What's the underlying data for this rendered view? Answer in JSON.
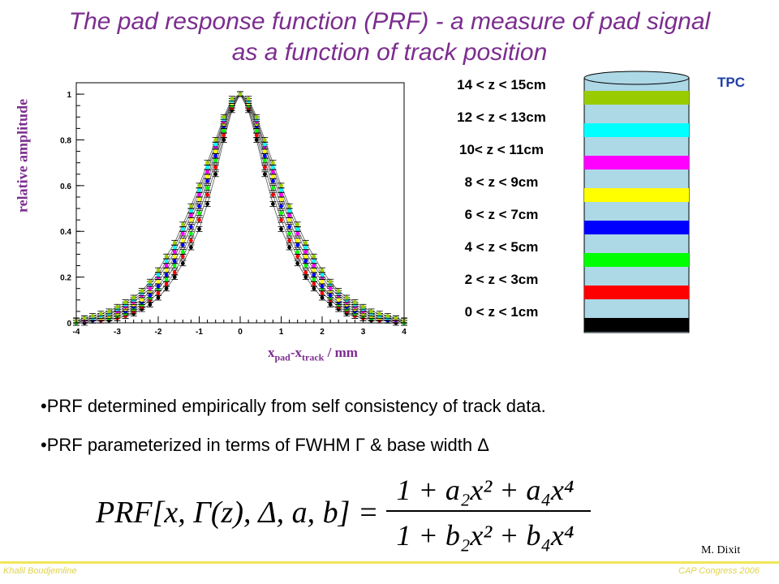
{
  "slide": {
    "title_line1": "The pad response function (PRF) - a measure of pad signal",
    "title_line2": "as a function of track position",
    "bullets": [
      "•PRF determined empirically from self consistency of track data.",
      "•PRF parameterized in terms of FWHM Γ & base width Δ"
    ],
    "formula": {
      "lhs": "PRF[x, Γ(z), Δ, a, b] =",
      "numerator": "1 + a₂x² + a₄x⁴",
      "denominator": "1 + b₂x² + b₄x⁴"
    },
    "credit": "M. Dixit",
    "footer_left": "Khalil Boudjemline",
    "footer_right": "CAP Congress 2006"
  },
  "colors": {
    "title": "#7b2d8e",
    "tpc_label": "#1f3fa8",
    "cylinder_body": "#add8e6",
    "footer": "#e0d24a"
  },
  "tpc": {
    "label": "TPC",
    "bands": [
      {
        "label": "14 < z < 15cm",
        "color": "#99cc00"
      },
      {
        "label": "12 < z < 13cm",
        "color": "#00ffff"
      },
      {
        "label": "10< z < 11cm",
        "color": "#ff00ff"
      },
      {
        "label": "8 < z < 9cm",
        "color": "#ffff00"
      },
      {
        "label": "6 < z < 7cm",
        "color": "#0000ff"
      },
      {
        "label": "4 < z < 5cm",
        "color": "#00ff00"
      },
      {
        "label": "2 < z < 3cm",
        "color": "#ff0000"
      },
      {
        "label": "0 < z < 1cm",
        "color": "#000000"
      }
    ]
  },
  "chart_data": {
    "type": "scatter",
    "ylabel": "relative amplitude",
    "xlabel_parts": [
      "x",
      "pad",
      "-x",
      "track",
      " / mm"
    ],
    "xlim": [
      -4,
      4
    ],
    "ylim": [
      0,
      1.05
    ],
    "xticks": [
      "-4",
      "-3",
      "-2",
      "-1",
      "0",
      "1",
      "2",
      "3",
      "4"
    ],
    "yticks": [
      "0",
      "0.2",
      "0.4",
      "0.6",
      "0.8",
      "1"
    ],
    "grid": false,
    "x": [
      -4.0,
      -3.8,
      -3.6,
      -3.4,
      -3.2,
      -3.0,
      -2.8,
      -2.6,
      -2.4,
      -2.2,
      -2.0,
      -1.8,
      -1.6,
      -1.4,
      -1.2,
      -1.0,
      -0.8,
      -0.6,
      -0.4,
      -0.2,
      0.0,
      0.2,
      0.4,
      0.6,
      0.8,
      1.0,
      1.2,
      1.4,
      1.6,
      1.8,
      2.0,
      2.2,
      2.4,
      2.6,
      2.8,
      3.0,
      3.2,
      3.4,
      3.6,
      3.8,
      4.0
    ],
    "series": [
      {
        "color": "#000000",
        "values": [
          0.0,
          0.0,
          0.01,
          0.01,
          0.01,
          0.02,
          0.03,
          0.04,
          0.06,
          0.08,
          0.11,
          0.15,
          0.2,
          0.26,
          0.33,
          0.41,
          0.52,
          0.65,
          0.8,
          0.93,
          1.0,
          0.93,
          0.8,
          0.65,
          0.52,
          0.41,
          0.33,
          0.26,
          0.2,
          0.15,
          0.11,
          0.08,
          0.06,
          0.04,
          0.03,
          0.02,
          0.01,
          0.01,
          0.01,
          0.0,
          0.0
        ]
      },
      {
        "color": "#ff0000",
        "values": [
          0.0,
          0.01,
          0.01,
          0.01,
          0.02,
          0.02,
          0.03,
          0.05,
          0.07,
          0.1,
          0.13,
          0.17,
          0.22,
          0.29,
          0.36,
          0.45,
          0.56,
          0.68,
          0.82,
          0.94,
          1.0,
          0.94,
          0.82,
          0.68,
          0.56,
          0.45,
          0.36,
          0.29,
          0.22,
          0.17,
          0.13,
          0.1,
          0.07,
          0.05,
          0.03,
          0.02,
          0.02,
          0.01,
          0.01,
          0.01,
          0.0
        ]
      },
      {
        "color": "#00ff00",
        "values": [
          0.0,
          0.01,
          0.01,
          0.02,
          0.02,
          0.03,
          0.04,
          0.06,
          0.08,
          0.11,
          0.15,
          0.19,
          0.25,
          0.31,
          0.39,
          0.48,
          0.59,
          0.71,
          0.84,
          0.95,
          1.0,
          0.95,
          0.84,
          0.71,
          0.59,
          0.48,
          0.39,
          0.31,
          0.25,
          0.19,
          0.15,
          0.11,
          0.08,
          0.06,
          0.04,
          0.03,
          0.02,
          0.02,
          0.01,
          0.01,
          0.0
        ]
      },
      {
        "color": "#0000ff",
        "values": [
          0.01,
          0.01,
          0.01,
          0.02,
          0.03,
          0.04,
          0.05,
          0.07,
          0.09,
          0.12,
          0.16,
          0.21,
          0.27,
          0.34,
          0.42,
          0.51,
          0.62,
          0.73,
          0.86,
          0.96,
          1.0,
          0.96,
          0.86,
          0.73,
          0.62,
          0.51,
          0.42,
          0.34,
          0.27,
          0.21,
          0.16,
          0.12,
          0.09,
          0.07,
          0.05,
          0.04,
          0.03,
          0.02,
          0.01,
          0.01,
          0.01
        ]
      },
      {
        "color": "#ffff00",
        "values": [
          0.01,
          0.01,
          0.02,
          0.02,
          0.03,
          0.04,
          0.06,
          0.08,
          0.1,
          0.14,
          0.18,
          0.23,
          0.29,
          0.36,
          0.45,
          0.54,
          0.64,
          0.75,
          0.87,
          0.96,
          1.0,
          0.96,
          0.87,
          0.75,
          0.64,
          0.54,
          0.45,
          0.36,
          0.29,
          0.23,
          0.18,
          0.14,
          0.1,
          0.08,
          0.06,
          0.04,
          0.03,
          0.02,
          0.02,
          0.01,
          0.01
        ]
      },
      {
        "color": "#ff00ff",
        "values": [
          0.01,
          0.01,
          0.02,
          0.03,
          0.04,
          0.05,
          0.07,
          0.09,
          0.12,
          0.15,
          0.2,
          0.25,
          0.31,
          0.39,
          0.47,
          0.56,
          0.66,
          0.77,
          0.88,
          0.97,
          1.0,
          0.97,
          0.88,
          0.77,
          0.66,
          0.56,
          0.47,
          0.39,
          0.31,
          0.25,
          0.2,
          0.15,
          0.12,
          0.09,
          0.07,
          0.05,
          0.04,
          0.03,
          0.02,
          0.01,
          0.01
        ]
      },
      {
        "color": "#00ffff",
        "values": [
          0.01,
          0.02,
          0.02,
          0.03,
          0.04,
          0.06,
          0.08,
          0.1,
          0.13,
          0.17,
          0.21,
          0.27,
          0.33,
          0.41,
          0.49,
          0.58,
          0.68,
          0.78,
          0.89,
          0.97,
          1.0,
          0.97,
          0.89,
          0.78,
          0.68,
          0.58,
          0.49,
          0.41,
          0.33,
          0.27,
          0.21,
          0.17,
          0.13,
          0.1,
          0.08,
          0.06,
          0.04,
          0.03,
          0.02,
          0.02,
          0.01
        ]
      },
      {
        "color": "#99cc00",
        "values": [
          0.01,
          0.02,
          0.03,
          0.04,
          0.05,
          0.07,
          0.09,
          0.11,
          0.14,
          0.18,
          0.23,
          0.29,
          0.35,
          0.43,
          0.51,
          0.6,
          0.7,
          0.8,
          0.9,
          0.98,
          1.0,
          0.98,
          0.9,
          0.8,
          0.7,
          0.6,
          0.51,
          0.43,
          0.35,
          0.29,
          0.23,
          0.18,
          0.14,
          0.11,
          0.09,
          0.07,
          0.05,
          0.04,
          0.03,
          0.02,
          0.01
        ]
      }
    ]
  }
}
